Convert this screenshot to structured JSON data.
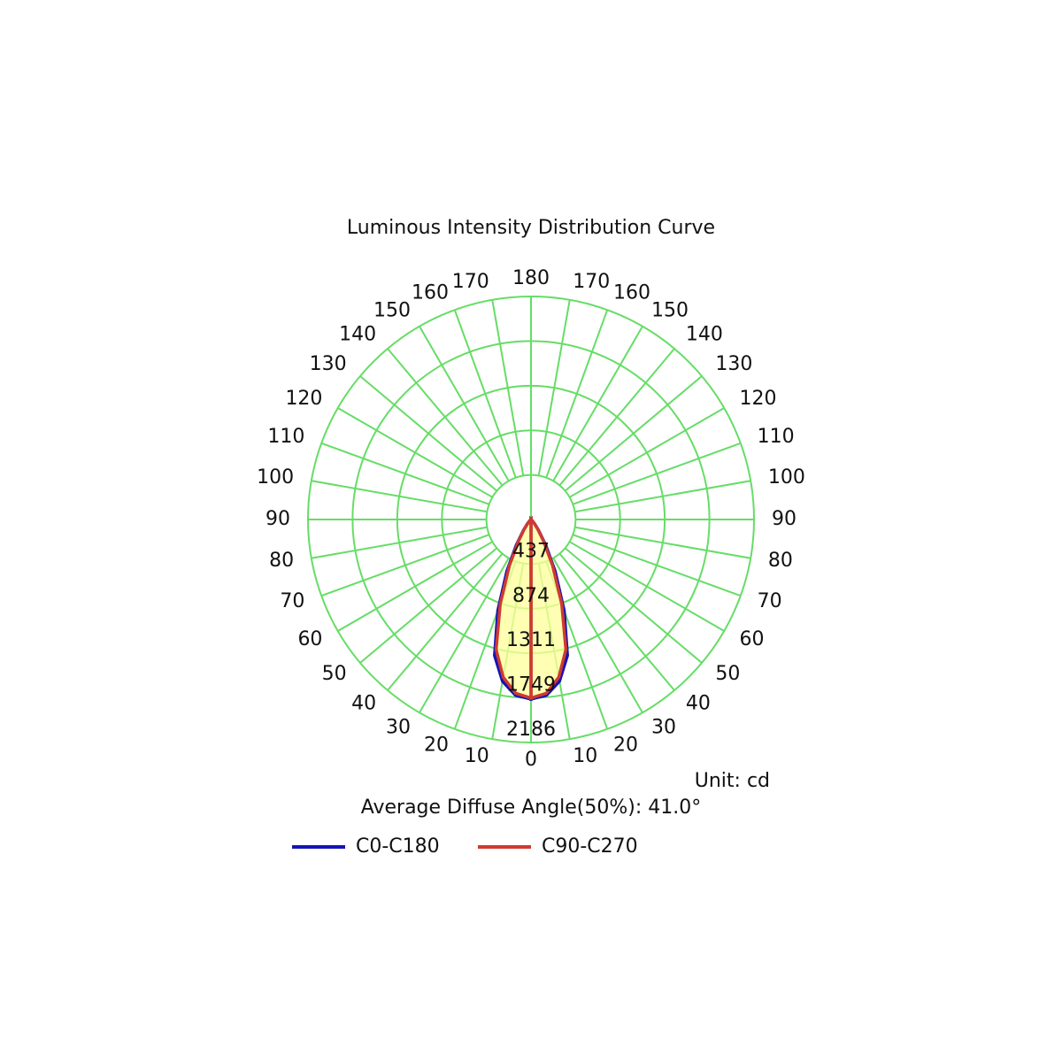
{
  "chart_data": {
    "type": "polar",
    "title": "Luminous Intensity Distribution Curve",
    "unit_label": "Unit: cd",
    "note": "Average Diffuse Angle(50%): 41.0°",
    "angles": [
      0,
      5,
      10,
      15,
      20,
      25,
      30,
      35,
      40,
      45,
      50,
      55,
      60,
      65,
      70,
      75,
      80,
      85,
      90
    ],
    "angle_ticks": [
      0,
      10,
      20,
      30,
      40,
      50,
      60,
      70,
      80,
      90,
      100,
      110,
      120,
      130,
      140,
      150,
      160,
      170,
      180
    ],
    "rlim": [
      0,
      2186
    ],
    "rticks": [
      437,
      874,
      1311,
      1749,
      2186
    ],
    "grid_color": "#66dd66",
    "series": [
      {
        "name": "C0-C180",
        "color": "#1414b4",
        "values": [
          1760,
          1730,
          1610,
          1380,
          950,
          560,
          290,
          130,
          55,
          20,
          8,
          3,
          1,
          0,
          0,
          0,
          0,
          0,
          0
        ]
      },
      {
        "name": "C90-C270",
        "color": "#d03a30",
        "values": [
          1750,
          1710,
          1570,
          1320,
          880,
          500,
          250,
          110,
          45,
          18,
          7,
          2,
          1,
          0,
          0,
          0,
          0,
          0,
          0
        ]
      }
    ]
  }
}
